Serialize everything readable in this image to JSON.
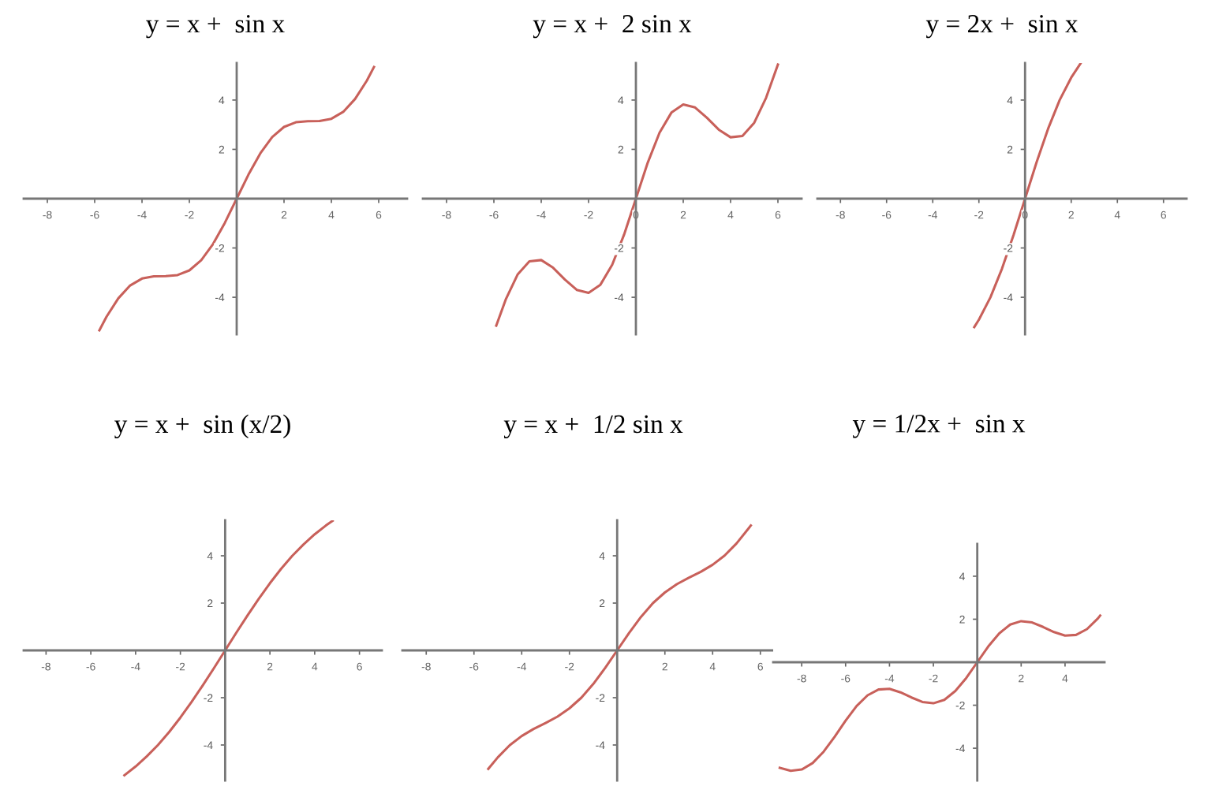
{
  "chart_data": [
    {
      "type": "line",
      "title": "y = x +  sin x",
      "xlim": [
        -9,
        7.2
      ],
      "ylim": [
        -5.5,
        5.5
      ],
      "xticks": [
        -8,
        -6,
        -4,
        -2,
        2,
        4,
        6
      ],
      "yticks": [
        -4,
        -2,
        2,
        4
      ],
      "grid": false,
      "series": [
        {
          "color": "#c8605a",
          "x": [
            -5.8,
            -5.5,
            -5,
            -4.5,
            -4,
            -3.5,
            -3,
            -2.5,
            -2,
            -1.5,
            -1,
            -0.5,
            0,
            0.5,
            1,
            1.5,
            2,
            2.5,
            3,
            3.5,
            4,
            4.5,
            5,
            5.5,
            5.8
          ],
          "values": [
            -5.34,
            -4.79,
            -4.04,
            -3.52,
            -3.24,
            -3.15,
            -3.14,
            -3.1,
            -2.91,
            -2.5,
            -1.84,
            -0.98,
            0,
            0.98,
            1.84,
            2.5,
            2.91,
            3.1,
            3.14,
            3.15,
            3.24,
            3.52,
            4.04,
            4.79,
            5.34
          ]
        }
      ]
    },
    {
      "type": "line",
      "title": "y = x +  2 sin x",
      "xlim": [
        -9,
        7
      ],
      "ylim": [
        -5.5,
        5.5
      ],
      "xticks": [
        -8,
        -6,
        -4,
        -2,
        0,
        2,
        4,
        6
      ],
      "yticks": [
        -4,
        -2,
        2,
        4
      ],
      "grid": false,
      "series": [
        {
          "color": "#c8605a",
          "x": [
            -5.9,
            -5.5,
            -5,
            -4.5,
            -4,
            -3.5,
            -3,
            -2.5,
            -2,
            -1.5,
            -1,
            -0.5,
            0,
            0.5,
            1,
            1.5,
            2,
            2.5,
            3,
            3.5,
            4,
            4.5,
            5,
            5.5,
            6
          ],
          "values": [
            -5.15,
            -4.09,
            -3.08,
            -2.54,
            -2.49,
            -2.8,
            -3.28,
            -3.7,
            -3.82,
            -3.49,
            -2.68,
            -1.46,
            0,
            1.46,
            2.68,
            3.49,
            3.82,
            3.7,
            3.28,
            2.8,
            2.49,
            2.54,
            3.08,
            4.09,
            5.44
          ]
        }
      ]
    },
    {
      "type": "line",
      "title": "y = 2x +  sin x",
      "xlim": [
        -9,
        7
      ],
      "ylim": [
        -5.5,
        5.5
      ],
      "xticks": [
        -8,
        -6,
        -4,
        -2,
        0,
        2,
        4,
        6
      ],
      "yticks": [
        -4,
        -2,
        2,
        4
      ],
      "grid": false,
      "series": [
        {
          "color": "#c8605a",
          "x": [
            -2.2,
            -2,
            -1.5,
            -1,
            -0.5,
            0,
            0.5,
            1,
            1.5,
            2,
            2.4
          ],
          "values": [
            -5.21,
            -4.91,
            -4.0,
            -2.84,
            -1.48,
            0,
            1.48,
            2.84,
            4.0,
            4.91,
            5.48
          ]
        }
      ]
    },
    {
      "type": "line",
      "title": "y = x +  sin (x/2)",
      "xlim": [
        -9,
        7
      ],
      "ylim": [
        -5.5,
        5.5
      ],
      "xticks": [
        -8,
        -6,
        -4,
        -2,
        2,
        4,
        6
      ],
      "yticks": [
        -4,
        -2,
        2,
        4
      ],
      "grid": false,
      "series": [
        {
          "color": "#c8605a",
          "x": [
            -4.5,
            -4,
            -3.5,
            -3,
            -2.5,
            -2,
            -1.5,
            -1,
            -0.5,
            0,
            0.5,
            1,
            1.5,
            2,
            2.5,
            3,
            3.5,
            4,
            4.5,
            4.8
          ],
          "values": [
            -5.28,
            -4.91,
            -4.48,
            -4.0,
            -3.45,
            -2.84,
            -2.18,
            -1.48,
            -0.75,
            0,
            0.75,
            1.48,
            2.18,
            2.84,
            3.45,
            4.0,
            4.48,
            4.91,
            5.28,
            5.48
          ]
        }
      ]
    },
    {
      "type": "line",
      "title": "y = x +  1/2 sin x",
      "xlim": [
        -9,
        7
      ],
      "ylim": [
        -5.5,
        5.5
      ],
      "xticks": [
        -8,
        -6,
        -4,
        -2,
        2,
        4,
        6
      ],
      "yticks": [
        -4,
        -2,
        2,
        4
      ],
      "grid": false,
      "series": [
        {
          "color": "#c8605a",
          "x": [
            -5.4,
            -5,
            -4.5,
            -4,
            -3.5,
            -3,
            -2.5,
            -2,
            -1.5,
            -1,
            -0.5,
            0,
            0.5,
            1,
            1.5,
            2,
            2.5,
            3,
            3.5,
            4,
            4.5,
            5,
            5.5,
            5.6
          ],
          "values": [
            -5.01,
            -4.52,
            -4.01,
            -3.62,
            -3.32,
            -3.07,
            -2.8,
            -2.45,
            -2.0,
            -1.42,
            -0.74,
            0,
            0.74,
            1.42,
            2.0,
            2.45,
            2.8,
            3.07,
            3.32,
            3.62,
            4.01,
            4.52,
            5.15,
            5.28
          ]
        }
      ]
    },
    {
      "type": "line",
      "title": "y = 1/2x +  sin x",
      "xlim": [
        -9.3,
        5.8
      ],
      "ylim": [
        -5.5,
        5.5
      ],
      "xticks": [
        -8,
        -6,
        -4,
        -2,
        2,
        4
      ],
      "yticks": [
        -4,
        -2,
        2,
        4
      ],
      "grid": false,
      "series": [
        {
          "color": "#c8605a",
          "x": [
            -9,
            -8.5,
            -8,
            -7.5,
            -7,
            -6.5,
            -6,
            -5.5,
            -5,
            -4.5,
            -4,
            -3.5,
            -3,
            -2.5,
            -2,
            -1.5,
            -1,
            -0.5,
            0,
            0.5,
            1,
            1.5,
            2,
            2.5,
            3,
            3.5,
            4,
            4.5,
            5,
            5.5,
            5.6
          ],
          "values": [
            -4.91,
            -5.05,
            -4.99,
            -4.69,
            -4.16,
            -3.47,
            -2.72,
            -2.04,
            -1.54,
            -1.27,
            -1.24,
            -1.4,
            -1.64,
            -1.85,
            -1.91,
            -1.75,
            -1.34,
            -0.73,
            0,
            0.73,
            1.34,
            1.75,
            1.91,
            1.85,
            1.64,
            1.4,
            1.24,
            1.27,
            1.54,
            2.04,
            2.17
          ]
        }
      ]
    }
  ]
}
